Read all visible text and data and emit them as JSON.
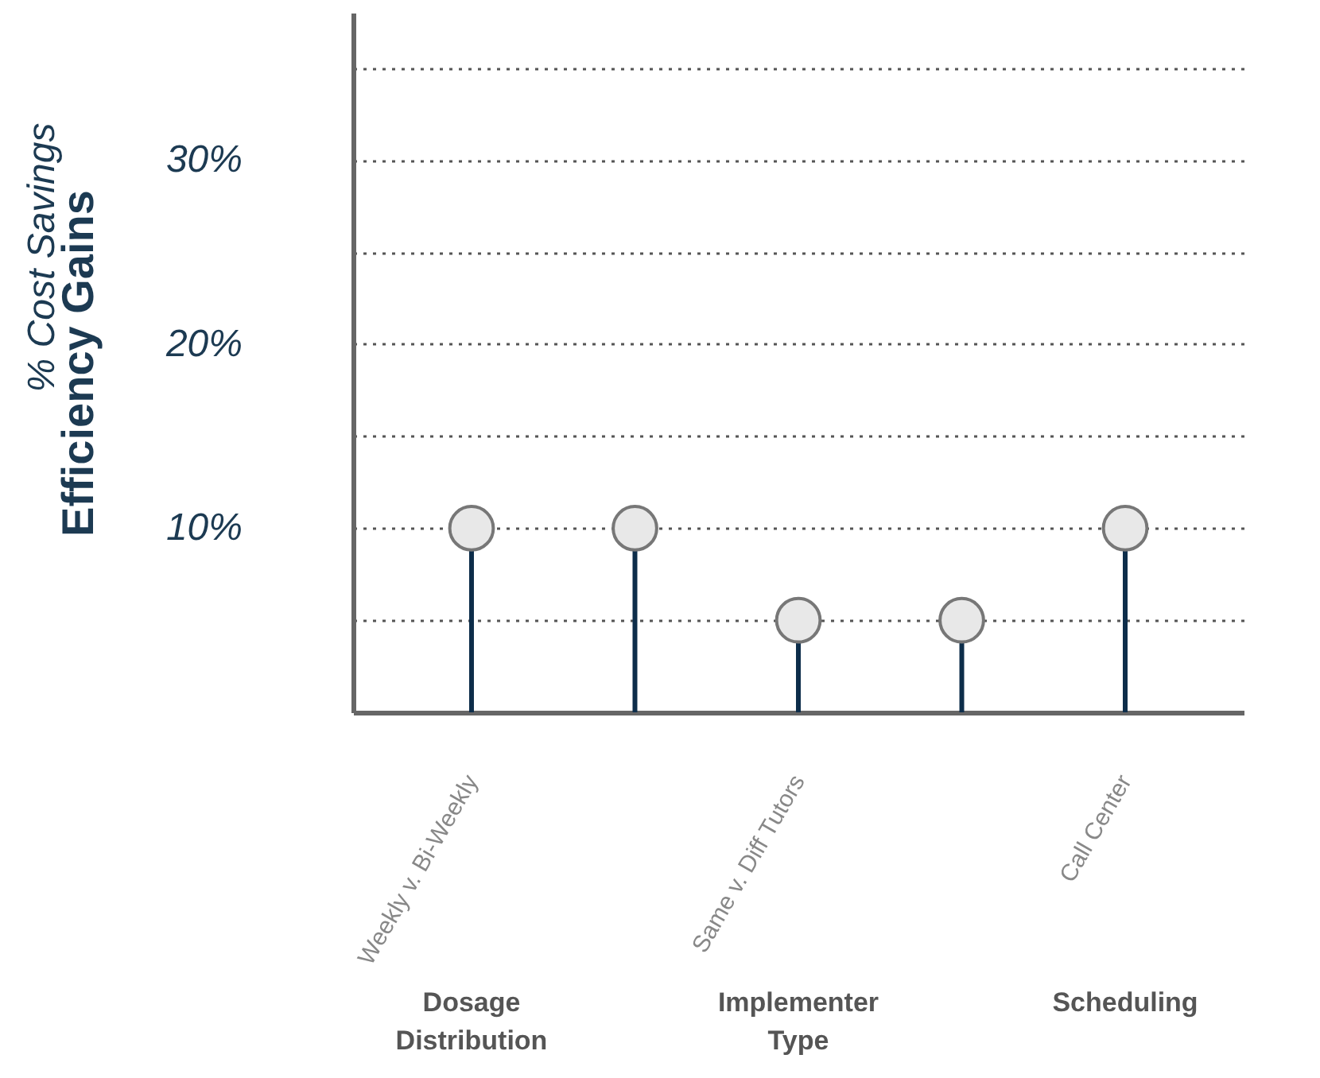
{
  "chart_data": {
    "type": "lollipop",
    "ylabel": "Efficiency Gains",
    "subtitle": "% Cost Savings",
    "categories": [
      "Weekly v. Bi-Weekly",
      null,
      "Same v. Diff Tutors",
      null,
      "Call Center"
    ],
    "values": [
      10,
      10,
      5,
      5,
      10
    ],
    "color": "#e8e8e8",
    "marker": "circle",
    "ylim": [
      0,
      38
    ],
    "yticks": [
      {
        "value": 5,
        "label": null
      },
      {
        "value": 10,
        "label": "10%"
      },
      {
        "value": 15,
        "label": null
      },
      {
        "value": 20,
        "label": "20%"
      },
      {
        "value": 25,
        "label": null
      },
      {
        "value": 30,
        "label": "30%"
      },
      {
        "value": 35,
        "label": null
      }
    ],
    "grid": true,
    "annotations": [
      "Dosage\nDistribution",
      "Implementer\nType",
      "Scheduling"
    ]
  }
}
